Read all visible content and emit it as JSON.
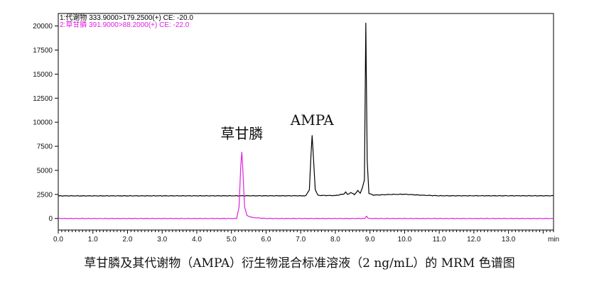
{
  "chart_data": {
    "type": "line",
    "title": "",
    "xlabel": "",
    "ylabel": "",
    "x_unit": "min",
    "xlim": [
      0,
      14.3
    ],
    "ylim": [
      -1200,
      21300
    ],
    "x_ticks": [
      "0.0",
      "1.0",
      "2.0",
      "3.0",
      "4.0",
      "5.0",
      "6.0",
      "7.0",
      "8.0",
      "9.0",
      "10.0",
      "11.0",
      "12.0",
      "13.0",
      "min"
    ],
    "y_ticks": [
      "0",
      "2500",
      "5000",
      "7500",
      "10000",
      "12500",
      "15000",
      "17500",
      "20000"
    ],
    "legend_position": "top-left",
    "series": [
      {
        "name": "1:代谢物 333.9000>179.2500(+) CE: -20.0",
        "color": "#000000",
        "baseline": 2350,
        "points": [
          [
            0.0,
            2350
          ],
          [
            7.15,
            2360
          ],
          [
            7.25,
            3000
          ],
          [
            7.3,
            6800
          ],
          [
            7.33,
            8600
          ],
          [
            7.36,
            6800
          ],
          [
            7.42,
            3000
          ],
          [
            7.5,
            2400
          ],
          [
            8.0,
            2380
          ],
          [
            8.25,
            2550
          ],
          [
            8.3,
            2750
          ],
          [
            8.35,
            2500
          ],
          [
            8.45,
            2700
          ],
          [
            8.55,
            2480
          ],
          [
            8.65,
            2900
          ],
          [
            8.72,
            2600
          ],
          [
            8.78,
            3200
          ],
          [
            8.84,
            4000
          ],
          [
            8.88,
            20300
          ],
          [
            8.92,
            6000
          ],
          [
            8.97,
            2600
          ],
          [
            9.1,
            2430
          ],
          [
            9.6,
            2500
          ],
          [
            10.0,
            2520
          ],
          [
            10.5,
            2420
          ],
          [
            11.0,
            2360
          ],
          [
            14.3,
            2360
          ]
        ]
      },
      {
        "name": "2:草甘膦 391.9000>88.2000(+) CE: -22.0",
        "color": "#e020e0",
        "baseline": 0,
        "points": [
          [
            0.0,
            0
          ],
          [
            5.15,
            0
          ],
          [
            5.22,
            1200
          ],
          [
            5.27,
            5500
          ],
          [
            5.3,
            6900
          ],
          [
            5.33,
            5000
          ],
          [
            5.38,
            1200
          ],
          [
            5.45,
            300
          ],
          [
            5.6,
            100
          ],
          [
            6.0,
            0
          ],
          [
            8.85,
            0
          ],
          [
            8.9,
            250
          ],
          [
            8.95,
            0
          ],
          [
            14.3,
            0
          ]
        ]
      }
    ],
    "annotations": [
      {
        "text": "草甘膦",
        "x": 5.3,
        "y": 8300
      },
      {
        "text": "AMPA",
        "x": 7.33,
        "y": 9700
      }
    ]
  },
  "caption": "草甘膦及其代谢物（AMPA）衍生物混合标准溶液（2 ng/mL）的 MRM 色谱图"
}
